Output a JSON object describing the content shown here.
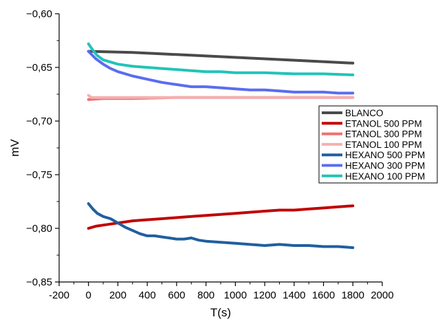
{
  "chart_data": {
    "type": "line",
    "title": "",
    "xlabel": "T(s)",
    "ylabel": "mV",
    "xlim": [
      -200,
      2000
    ],
    "ylim": [
      -0.85,
      -0.6
    ],
    "x_ticks": [
      -200,
      0,
      200,
      400,
      600,
      800,
      1000,
      1200,
      1400,
      1600,
      1800,
      2000
    ],
    "x_tick_labels": [
      "-200",
      "0",
      "200",
      "400",
      "600",
      "800",
      "1000",
      "1200",
      "1400",
      "1600",
      "1800",
      "2000"
    ],
    "y_ticks": [
      -0.85,
      -0.8,
      -0.75,
      -0.7,
      -0.65,
      -0.6
    ],
    "y_tick_labels": [
      "−0,85",
      "−0,80",
      "−0,75",
      "−0,70",
      "−0,65",
      "−0,60"
    ],
    "grid": false,
    "legend_position": "right",
    "series": [
      {
        "name": "BLANCO",
        "color": "#4a4a4a",
        "points": [
          [
            0,
            -0.635
          ],
          [
            300,
            -0.636
          ],
          [
            600,
            -0.638
          ],
          [
            900,
            -0.64
          ],
          [
            1200,
            -0.642
          ],
          [
            1500,
            -0.644
          ],
          [
            1800,
            -0.646
          ]
        ]
      },
      {
        "name": "ETANOL 500 PPM",
        "color": "#c00000",
        "points": [
          [
            0,
            -0.8
          ],
          [
            50,
            -0.798
          ],
          [
            100,
            -0.797
          ],
          [
            200,
            -0.795
          ],
          [
            300,
            -0.793
          ],
          [
            400,
            -0.792
          ],
          [
            500,
            -0.791
          ],
          [
            600,
            -0.79
          ],
          [
            700,
            -0.789
          ],
          [
            800,
            -0.788
          ],
          [
            900,
            -0.787
          ],
          [
            1000,
            -0.786
          ],
          [
            1100,
            -0.785
          ],
          [
            1200,
            -0.784
          ],
          [
            1300,
            -0.783
          ],
          [
            1400,
            -0.783
          ],
          [
            1500,
            -0.782
          ],
          [
            1600,
            -0.781
          ],
          [
            1700,
            -0.78
          ],
          [
            1800,
            -0.779
          ]
        ]
      },
      {
        "name": "ETANOL 300 PPM",
        "color": "#f07070",
        "points": [
          [
            0,
            -0.68
          ],
          [
            100,
            -0.679
          ],
          [
            300,
            -0.679
          ],
          [
            600,
            -0.678
          ],
          [
            900,
            -0.678
          ],
          [
            1200,
            -0.678
          ],
          [
            1500,
            -0.678
          ],
          [
            1800,
            -0.678
          ]
        ]
      },
      {
        "name": "ETANOL 100 PPM",
        "color": "#f4b0b0",
        "points": [
          [
            0,
            -0.676
          ],
          [
            20,
            -0.678
          ],
          [
            100,
            -0.678
          ],
          [
            400,
            -0.678
          ],
          [
            800,
            -0.678
          ],
          [
            1200,
            -0.678
          ],
          [
            1800,
            -0.678
          ]
        ]
      },
      {
        "name": "HEXANO 500 PPM",
        "color": "#1f5fa0",
        "points": [
          [
            0,
            -0.777
          ],
          [
            30,
            -0.782
          ],
          [
            60,
            -0.786
          ],
          [
            100,
            -0.789
          ],
          [
            150,
            -0.791
          ],
          [
            200,
            -0.795
          ],
          [
            250,
            -0.799
          ],
          [
            300,
            -0.802
          ],
          [
            350,
            -0.805
          ],
          [
            400,
            -0.807
          ],
          [
            450,
            -0.807
          ],
          [
            500,
            -0.808
          ],
          [
            550,
            -0.809
          ],
          [
            600,
            -0.81
          ],
          [
            650,
            -0.81
          ],
          [
            700,
            -0.809
          ],
          [
            750,
            -0.811
          ],
          [
            800,
            -0.812
          ],
          [
            900,
            -0.813
          ],
          [
            1000,
            -0.814
          ],
          [
            1100,
            -0.815
          ],
          [
            1200,
            -0.816
          ],
          [
            1300,
            -0.815
          ],
          [
            1400,
            -0.816
          ],
          [
            1500,
            -0.816
          ],
          [
            1600,
            -0.817
          ],
          [
            1700,
            -0.817
          ],
          [
            1800,
            -0.818
          ]
        ]
      },
      {
        "name": "HEXANO 300 PPM",
        "color": "#5a6df0",
        "points": [
          [
            0,
            -0.635
          ],
          [
            50,
            -0.642
          ],
          [
            100,
            -0.647
          ],
          [
            150,
            -0.651
          ],
          [
            200,
            -0.654
          ],
          [
            300,
            -0.658
          ],
          [
            400,
            -0.661
          ],
          [
            500,
            -0.664
          ],
          [
            600,
            -0.666
          ],
          [
            700,
            -0.668
          ],
          [
            800,
            -0.668
          ],
          [
            900,
            -0.669
          ],
          [
            1000,
            -0.67
          ],
          [
            1100,
            -0.671
          ],
          [
            1200,
            -0.671
          ],
          [
            1300,
            -0.672
          ],
          [
            1400,
            -0.673
          ],
          [
            1500,
            -0.673
          ],
          [
            1600,
            -0.673
          ],
          [
            1700,
            -0.674
          ],
          [
            1800,
            -0.674
          ]
        ]
      },
      {
        "name": "HEXANO 100 PPM",
        "color": "#22c3b8",
        "points": [
          [
            0,
            -0.628
          ],
          [
            30,
            -0.634
          ],
          [
            60,
            -0.639
          ],
          [
            100,
            -0.643
          ],
          [
            150,
            -0.645
          ],
          [
            200,
            -0.647
          ],
          [
            300,
            -0.649
          ],
          [
            400,
            -0.65
          ],
          [
            500,
            -0.651
          ],
          [
            600,
            -0.652
          ],
          [
            700,
            -0.653
          ],
          [
            800,
            -0.654
          ],
          [
            900,
            -0.654
          ],
          [
            1000,
            -0.655
          ],
          [
            1200,
            -0.655
          ],
          [
            1400,
            -0.656
          ],
          [
            1600,
            -0.656
          ],
          [
            1800,
            -0.657
          ]
        ]
      }
    ]
  }
}
